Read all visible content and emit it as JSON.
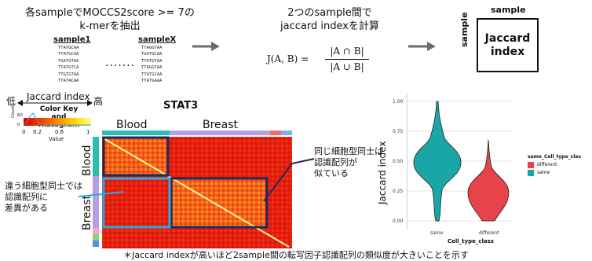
{
  "step1": {
    "caption_line1": "各sampleでMOCCS2score >= 7の",
    "caption_line2": "k-merを抽出",
    "sample1_header": "sample1",
    "sampleX_header": "sampleX",
    "sample1_seqs": [
      "TTATGCAA",
      "TTATGCAA",
      "TGATGTAA",
      "TTATGTCA",
      "TTGTGTAA",
      "TTATACAA"
    ],
    "sampleX_seqs": [
      "TTAGGTAA",
      "TGATGCAA",
      "TTATGTAA",
      "TTAGGTAA",
      "TTATGCAA",
      "TTATGAAA"
    ],
    "dots": "......."
  },
  "step2": {
    "caption_line1": "2つのsample間で",
    "caption_line2": "jaccard indexを計算",
    "formula_lhs": "J(A, B) =",
    "formula_num": "|A ∩ B|",
    "formula_den": "|A ∪ B|"
  },
  "step3": {
    "top_label": "sample",
    "side_label": "sample",
    "box_line1": "Jaccard",
    "box_line2": "index"
  },
  "heatmap": {
    "low_label": "低",
    "index_label": "Jaccard index",
    "high_label": "高",
    "colorkey_title_line1": "Color Key",
    "colorkey_title_line2": "and Histogram",
    "count_label": "Count",
    "count_ticks": [
      "0",
      "60"
    ],
    "value_ticks": [
      "0",
      "0.2",
      "0.6",
      "1"
    ],
    "value_label": "Value",
    "title": "STAT3",
    "group_blood": "Blood",
    "group_breast": "Breast",
    "callout_left": [
      "違う細胞型同士では",
      "認識配列に",
      "差異がある"
    ],
    "callout_right": [
      "同じ細胞型同士は",
      "認識配列が",
      "似ている"
    ]
  },
  "violin": {
    "ylabel": "Jaccard index",
    "yticks": [
      "1.00",
      "0.75",
      "0.50",
      "0.25",
      "0.00"
    ],
    "xticks": [
      "same",
      "different"
    ],
    "xlabel": "Cell_type_class",
    "legend_title": "same_Cell_type_clas",
    "legend_items": [
      {
        "label": "different",
        "color": "#e8424a"
      },
      {
        "label": "same",
        "color": "#1aa6a6"
      }
    ]
  },
  "colors": {
    "arrow": "#6b6b6b",
    "blood_bar": "#2bbfb0",
    "breast_bar": "#b8a0e0",
    "dark_box": "#1e2a5a",
    "light_box": "#29a9e0"
  },
  "footnote": "＊Jaccard indexが高いほど2sample間の転写因子認識配列の類似度が大きいことを示す"
}
